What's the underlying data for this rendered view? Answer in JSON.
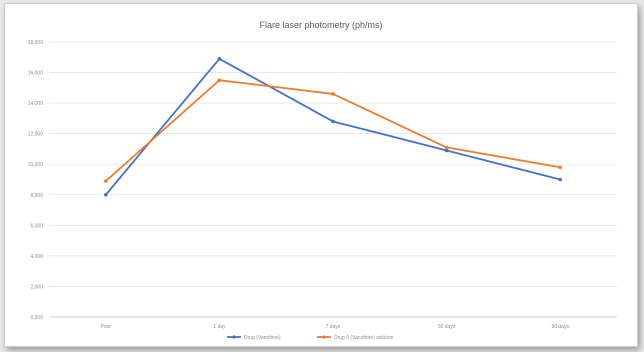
{
  "chart_data": {
    "type": "line",
    "title": "Flare laser photometry (ph/ms)",
    "xlabel": "",
    "ylabel": "",
    "categories": [
      "Prior",
      "1 day",
      "7 days",
      "30 days",
      "90 days"
    ],
    "ylim": [
      0,
      18
    ],
    "yticks": [
      0,
      2,
      4,
      6,
      8,
      10,
      12,
      14,
      16,
      18
    ],
    "ytick_labels": [
      "0,000",
      "2,000",
      "4,000",
      "6,000",
      "8,000",
      "10,000",
      "12,000",
      "14,000",
      "16,000",
      "18,000"
    ],
    "grid": true,
    "legend_position": "bottom",
    "series": [
      {
        "name": "Drug (Vanofrine)",
        "color": "#4472c4",
        "values": [
          8.0,
          16.9,
          12.8,
          10.9,
          9.0
        ]
      },
      {
        "name": "Drug II (Vanofrine) solution",
        "color": "#ed7d31",
        "values": [
          8.9,
          15.5,
          14.6,
          11.1,
          9.8
        ]
      }
    ]
  }
}
